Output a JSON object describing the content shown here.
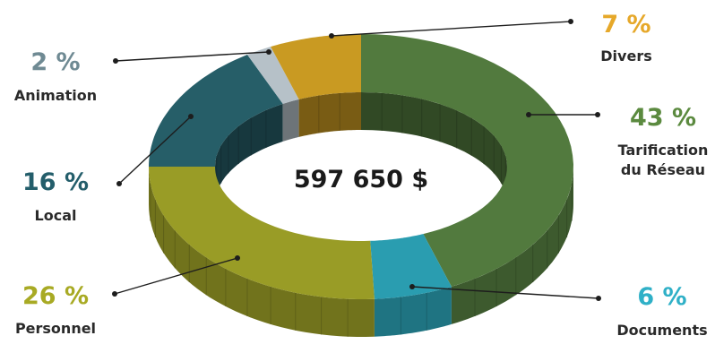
{
  "chart_data": {
    "type": "pie",
    "center_total": "597 650 $",
    "series": [
      {
        "key": "reseau",
        "name": "Tarification du Réseau",
        "name_lines": [
          "Tarification",
          "du Réseau"
        ],
        "value": 43,
        "label": "43 %",
        "color": "#527a3e",
        "label_color": "#5b8a3f"
      },
      {
        "key": "documents",
        "name": "Documents",
        "name_lines": [
          "Documents"
        ],
        "value": 6,
        "label": "6 %",
        "color": "#2a9db0",
        "label_color": "#2fb0c7"
      },
      {
        "key": "personnel",
        "name": "Personnel",
        "name_lines": [
          "Personnel"
        ],
        "value": 26,
        "label": "26 %",
        "color": "#999c26",
        "label_color": "#a8aa24"
      },
      {
        "key": "local",
        "name": "Local",
        "name_lines": [
          "Local"
        ],
        "value": 16,
        "label": "16 %",
        "color": "#265e68",
        "label_color": "#245e6b"
      },
      {
        "key": "animation",
        "name": "Animation",
        "name_lines": [
          "Animation"
        ],
        "value": 2,
        "label": "2 %",
        "color": "#b6c1c8",
        "label_color": "#6f8a93"
      },
      {
        "key": "divers",
        "name": "Divers",
        "name_lines": [
          "Divers"
        ],
        "value": 7,
        "label": "7 %",
        "color": "#c99a22",
        "label_color": "#e6a82a"
      }
    ],
    "legend": "none",
    "grid": false
  }
}
